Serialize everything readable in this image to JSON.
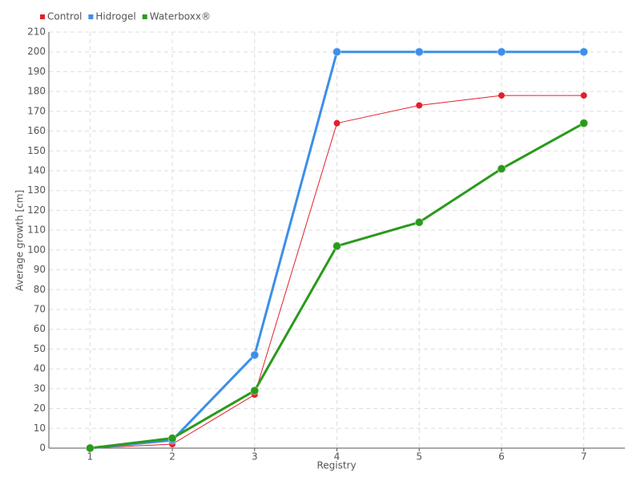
{
  "chart_data": {
    "type": "line",
    "x_label": "Registry",
    "y_label": "Average growth [cm]",
    "categories": [
      "1",
      "2",
      "3",
      "4",
      "5",
      "6",
      "7"
    ],
    "series": [
      {
        "name": "Control",
        "color": "#e3202c",
        "values": [
          0,
          2,
          27,
          164,
          173,
          178,
          178
        ]
      },
      {
        "name": "Hidrogel",
        "color": "#3d8fe8",
        "values": [
          0,
          4,
          47,
          200,
          200,
          200,
          200
        ]
      },
      {
        "name": "Waterboxx®",
        "color": "#2a9a1c",
        "values": [
          0,
          5,
          29,
          102,
          114,
          141,
          164
        ]
      }
    ],
    "ylim": [
      0,
      210
    ],
    "yticks": [
      0,
      10,
      20,
      30,
      40,
      50,
      60,
      70,
      80,
      90,
      100,
      110,
      120,
      130,
      140,
      150,
      160,
      170,
      180,
      190,
      200,
      210
    ],
    "grid": true
  }
}
